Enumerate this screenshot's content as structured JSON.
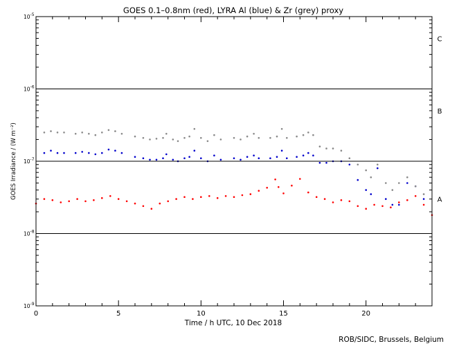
{
  "chart_data": {
    "type": "scatter",
    "title": "GOES 0.1–0.8nm (red), LYRA Al (blue) & Zr (grey) proxy",
    "xlabel": "Time / h UTC, 10 Dec 2018",
    "ylabel": "GOES Irradiance / (W m⁻²)",
    "xlim": [
      0,
      24
    ],
    "ylim": [
      1e-09,
      1e-05
    ],
    "yscale": "log",
    "x_ticks": [
      0,
      5,
      10,
      15,
      20
    ],
    "y_ticks": [
      {
        "value": 1e-09,
        "mantissa": "10",
        "exp": "-9"
      },
      {
        "value": 1e-08,
        "mantissa": "10",
        "exp": "-8"
      },
      {
        "value": 1e-07,
        "mantissa": "10",
        "exp": "-7"
      },
      {
        "value": 1e-06,
        "mantissa": "10",
        "exp": "-6"
      },
      {
        "value": 1e-05,
        "mantissa": "10",
        "exp": "-5"
      }
    ],
    "class_lines": [
      1e-08,
      1e-07,
      1e-06
    ],
    "class_labels": [
      {
        "label": "A",
        "value": 3e-08
      },
      {
        "label": "B",
        "value": 5e-07
      },
      {
        "label": "C",
        "value": 5e-06
      }
    ],
    "series": [
      {
        "color": "#ff0000",
        "x": [
          0.0,
          0.5,
          1.0,
          1.5,
          2.0,
          2.5,
          3.0,
          3.5,
          4.0,
          4.5,
          5.0,
          5.5,
          6.0,
          6.5,
          7.0,
          7.5,
          8.0,
          8.5,
          9.0,
          9.5,
          10.0,
          10.5,
          11.0,
          11.5,
          12.0,
          12.5,
          13.0,
          13.5,
          14.0,
          14.5,
          14.7,
          15.0,
          15.5,
          16.0,
          16.5,
          17.0,
          17.5,
          18.0,
          18.5,
          19.0,
          19.5,
          20.0,
          20.5,
          21.0,
          21.5,
          22.0,
          22.5,
          23.0,
          23.5,
          24.0
        ],
        "y": [
          2.6e-08,
          3e-08,
          2.9e-08,
          2.7e-08,
          2.8e-08,
          3e-08,
          2.8e-08,
          2.9e-08,
          3.1e-08,
          3.3e-08,
          3e-08,
          2.8e-08,
          2.6e-08,
          2.4e-08,
          2.2e-08,
          2.6e-08,
          2.8e-08,
          3e-08,
          3.2e-08,
          3e-08,
          3.2e-08,
          3.3e-08,
          3.1e-08,
          3.3e-08,
          3.2e-08,
          3.4e-08,
          3.5e-08,
          3.9e-08,
          4.3e-08,
          5.6e-08,
          4.4e-08,
          3.6e-08,
          4.6e-08,
          5.7e-08,
          3.7e-08,
          3.2e-08,
          3e-08,
          2.7e-08,
          2.9e-08,
          2.8e-08,
          2.4e-08,
          2.2e-08,
          2.5e-08,
          2.4e-08,
          2.3e-08,
          2.7e-08,
          2.9e-08,
          3.3e-08,
          2.5e-08,
          1.8e-08
        ]
      },
      {
        "color": "#0000cc",
        "x": [
          0.5,
          0.9,
          1.3,
          1.7,
          2.4,
          2.8,
          3.2,
          3.6,
          4.0,
          4.4,
          4.8,
          5.2,
          6.0,
          6.5,
          6.9,
          7.3,
          7.7,
          7.9,
          8.3,
          8.6,
          9.0,
          9.3,
          9.6,
          10.0,
          10.4,
          10.8,
          11.2,
          12.0,
          12.4,
          12.8,
          13.2,
          13.5,
          14.2,
          14.6,
          14.9,
          15.2,
          15.8,
          16.2,
          16.5,
          16.8,
          17.2,
          17.6,
          18.0,
          18.5,
          19.0,
          19.5,
          20.0,
          20.3,
          20.7,
          21.2,
          21.6,
          22.0,
          22.5,
          23.0,
          23.5
        ],
        "y": [
          1.3e-07,
          1.4e-07,
          1.3e-07,
          1.3e-07,
          1.3e-07,
          1.35e-07,
          1.3e-07,
          1.25e-07,
          1.3e-07,
          1.45e-07,
          1.4e-07,
          1.3e-07,
          1.15e-07,
          1.1e-07,
          1.05e-07,
          1.05e-07,
          1.1e-07,
          1.25e-07,
          1.05e-07,
          1e-07,
          1.1e-07,
          1.15e-07,
          1.4e-07,
          1.1e-07,
          1e-07,
          1.2e-07,
          1.05e-07,
          1.1e-07,
          1.05e-07,
          1.15e-07,
          1.2e-07,
          1.1e-07,
          1.1e-07,
          1.15e-07,
          1.4e-07,
          1.1e-07,
          1.15e-07,
          1.2e-07,
          1.3e-07,
          1.2e-07,
          9.5e-08,
          9.5e-08,
          1e-07,
          1e-07,
          9e-08,
          5.5e-08,
          4e-08,
          3.5e-08,
          8e-08,
          3e-08,
          2.5e-08,
          2.5e-08,
          5e-08,
          4.5e-08,
          3e-08
        ]
      },
      {
        "color": "#888888",
        "x": [
          0.5,
          0.9,
          1.3,
          1.7,
          2.4,
          2.8,
          3.2,
          3.6,
          4.0,
          4.4,
          4.8,
          5.2,
          6.0,
          6.5,
          6.9,
          7.3,
          7.7,
          7.9,
          8.3,
          8.6,
          9.0,
          9.3,
          9.6,
          10.0,
          10.4,
          10.8,
          11.2,
          12.0,
          12.4,
          12.8,
          13.2,
          13.5,
          14.2,
          14.6,
          14.9,
          15.2,
          15.8,
          16.2,
          16.5,
          16.8,
          17.2,
          17.6,
          18.0,
          18.5,
          19.0,
          19.5,
          20.0,
          20.3,
          20.7,
          21.2,
          21.6,
          22.0,
          22.5,
          23.0,
          23.5
        ],
        "y": [
          2.5e-07,
          2.6e-07,
          2.5e-07,
          2.5e-07,
          2.4e-07,
          2.5e-07,
          2.4e-07,
          2.3e-07,
          2.5e-07,
          2.7e-07,
          2.6e-07,
          2.4e-07,
          2.2e-07,
          2.1e-07,
          2e-07,
          2.05e-07,
          2.1e-07,
          2.4e-07,
          2e-07,
          1.9e-07,
          2.1e-07,
          2.2e-07,
          2.8e-07,
          2.1e-07,
          1.9e-07,
          2.3e-07,
          2e-07,
          2.1e-07,
          2e-07,
          2.2e-07,
          2.4e-07,
          2.1e-07,
          2.1e-07,
          2.2e-07,
          2.8e-07,
          2.1e-07,
          2.2e-07,
          2.3e-07,
          2.5e-07,
          2.3e-07,
          1.6e-07,
          1.5e-07,
          1.5e-07,
          1.4e-07,
          1.1e-07,
          9e-08,
          7.5e-08,
          6e-08,
          9e-08,
          5e-08,
          4e-08,
          5e-08,
          6e-08,
          4.5e-08,
          3.5e-08
        ]
      }
    ],
    "grid": false,
    "legend": "none"
  },
  "credit": "ROB/SIDC, Brussels, Belgium"
}
